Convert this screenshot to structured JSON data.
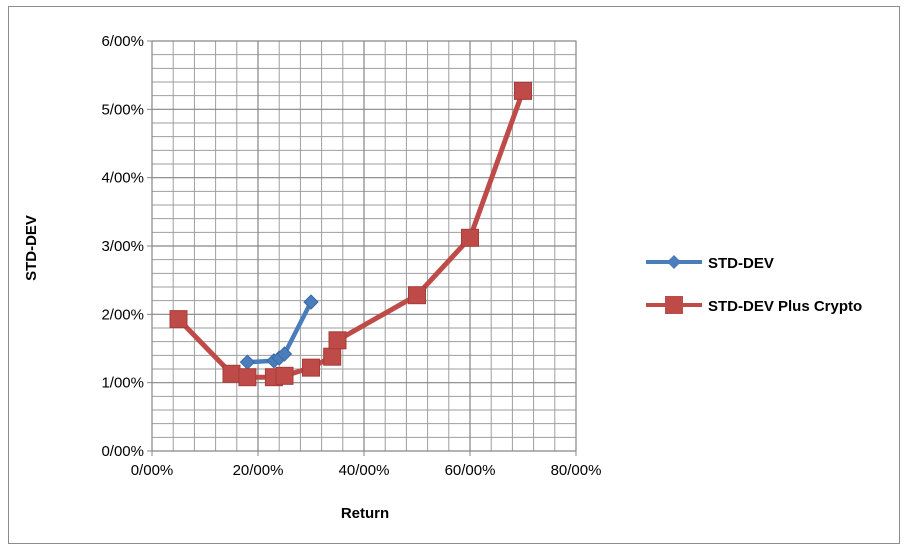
{
  "chart_data": {
    "type": "line",
    "xlabel": "Return",
    "ylabel": "STD-DEV",
    "xlim": [
      0,
      80
    ],
    "ylim": [
      0,
      6
    ],
    "x_ticks": [
      "0/00%",
      "20/00%",
      "40/00%",
      "60/00%",
      "80/00%"
    ],
    "y_ticks": [
      "0/00%",
      "1/00%",
      "2/00%",
      "3/00%",
      "4/00%",
      "5/00%",
      "6/00%"
    ],
    "grid": true,
    "legend_position": "right",
    "series": [
      {
        "name": "STD-DEV",
        "color": "#4a7ebb",
        "marker": "diamond",
        "x": [
          18,
          23,
          24,
          25,
          30
        ],
        "y": [
          1.3,
          1.32,
          1.36,
          1.42,
          2.18
        ]
      },
      {
        "name": "STD-DEV Plus Crypto",
        "color": "#be4b48",
        "marker": "square",
        "x": [
          5,
          15,
          18,
          23,
          25,
          30,
          34,
          35,
          50,
          60,
          70
        ],
        "y": [
          1.93,
          1.13,
          1.08,
          1.08,
          1.1,
          1.22,
          1.38,
          1.62,
          2.28,
          3.12,
          5.27
        ]
      }
    ]
  }
}
